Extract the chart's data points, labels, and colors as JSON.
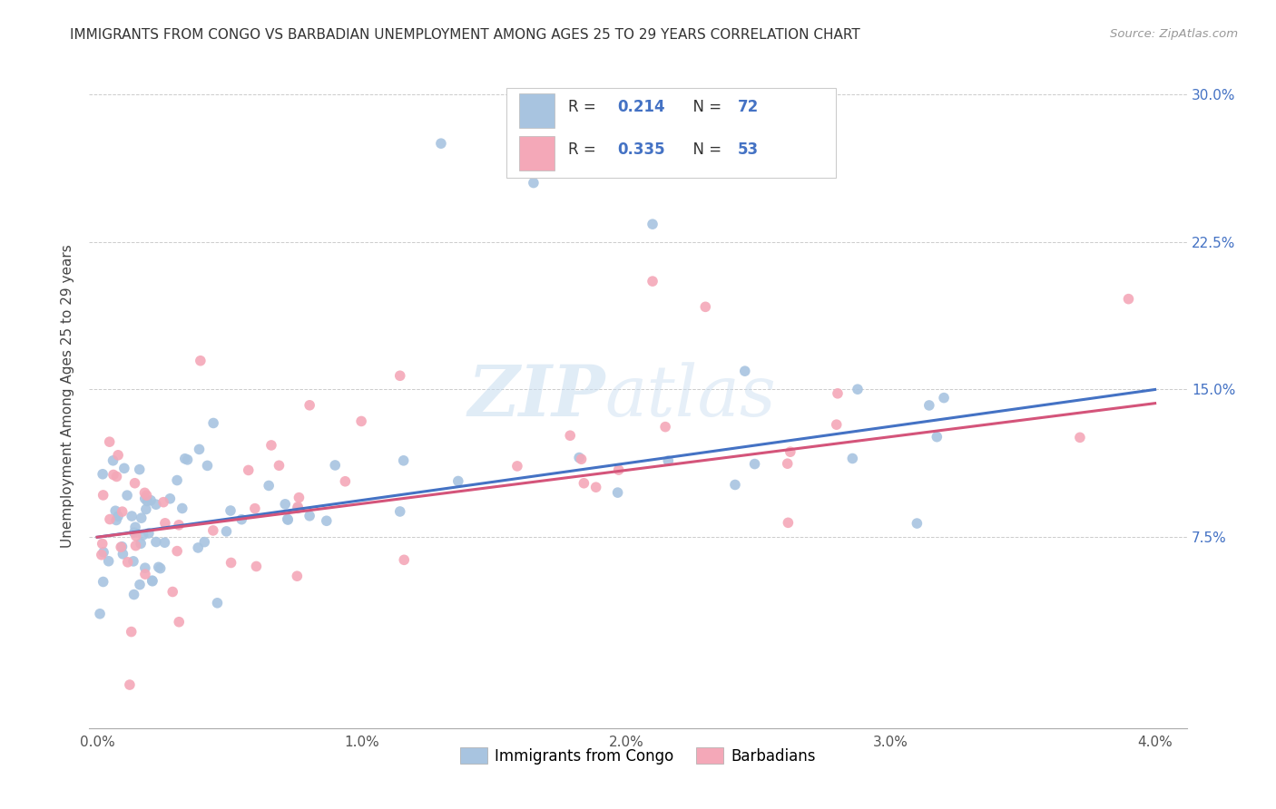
{
  "title": "IMMIGRANTS FROM CONGO VS BARBADIAN UNEMPLOYMENT AMONG AGES 25 TO 29 YEARS CORRELATION CHART",
  "source": "Source: ZipAtlas.com",
  "ylabel_label": "Unemployment Among Ages 25 to 29 years",
  "legend_label1": "Immigrants from Congo",
  "legend_label2": "Barbadians",
  "R1": "0.214",
  "N1": "72",
  "R2": "0.335",
  "N2": "53",
  "color1": "#a8c4e0",
  "color2": "#f4a8b8",
  "line_color1": "#4472c4",
  "line_color2": "#d4547a",
  "watermark_zip": "ZIP",
  "watermark_atlas": "atlas",
  "xlim": [
    0.0,
    0.04
  ],
  "ylim": [
    0.0,
    0.305
  ],
  "xticks": [
    0.0,
    0.01,
    0.02,
    0.03,
    0.04
  ],
  "xtick_labels": [
    "0.0%",
    "1.0%",
    "2.0%",
    "3.0%",
    "4.0%"
  ],
  "yticks": [
    0.075,
    0.15,
    0.225,
    0.3
  ],
  "ytick_labels": [
    "7.5%",
    "15.0%",
    "22.5%",
    "30.0%"
  ]
}
